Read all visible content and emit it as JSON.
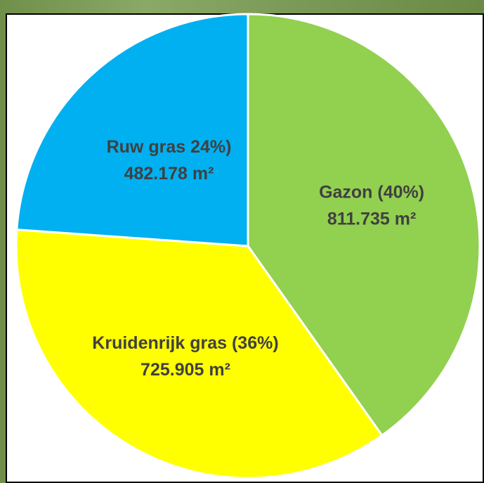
{
  "chart_data": {
    "type": "pie",
    "categories": [
      "Gazon (40%)",
      "Kruidenrijk gras (36%)",
      "Ruw gras 24%)"
    ],
    "values": [
      811735,
      725905,
      482178
    ],
    "value_labels": [
      "811.735 m²",
      "725.905 m²",
      "482.178 m²"
    ],
    "colors": [
      "#92d050",
      "#ffff00",
      "#00b0f0"
    ]
  }
}
